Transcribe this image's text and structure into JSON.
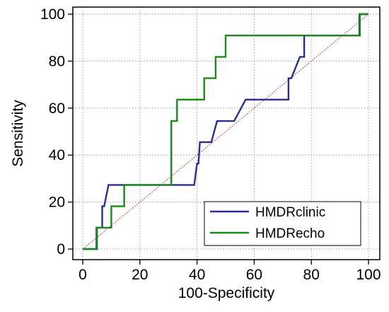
{
  "chart_data": {
    "type": "line",
    "xlabel": "100-Specificity",
    "ylabel": "Sensitivity",
    "xlim": [
      0,
      100
    ],
    "ylim": [
      0,
      100
    ],
    "x_ticks": [
      "0",
      "20",
      "40",
      "60",
      "80",
      "100"
    ],
    "y_ticks": [
      "0",
      "20",
      "40",
      "60",
      "80",
      "100"
    ],
    "grid": true,
    "legend_position": "bottom-right",
    "series": [
      {
        "name": "HMDRclinic",
        "color": "#2b2e8f",
        "points": [
          [
            0,
            0
          ],
          [
            4.8,
            0
          ],
          [
            4.8,
            9.1
          ],
          [
            6.8,
            9.1
          ],
          [
            6.8,
            18.2
          ],
          [
            7.5,
            18.2
          ],
          [
            7.5,
            18.2
          ],
          [
            9,
            27.3
          ],
          [
            39,
            27.3
          ],
          [
            40,
            36.4
          ],
          [
            40.5,
            36.4
          ],
          [
            41,
            45.5
          ],
          [
            45,
            45.5
          ],
          [
            47,
            54.5
          ],
          [
            53,
            54.5
          ],
          [
            57,
            63.6
          ],
          [
            72,
            63.6
          ],
          [
            72,
            72.7
          ],
          [
            73,
            72.7
          ],
          [
            76,
            81.8
          ],
          [
            77.5,
            81.8
          ],
          [
            77.5,
            90.9
          ],
          [
            96.8,
            90.9
          ],
          [
            96.8,
            100
          ],
          [
            100,
            100
          ]
        ]
      },
      {
        "name": "HMDRecho",
        "color": "#1a8a1a",
        "points": [
          [
            0,
            0
          ],
          [
            5,
            0
          ],
          [
            5,
            9.1
          ],
          [
            10,
            9.1
          ],
          [
            10,
            18.2
          ],
          [
            14.5,
            18.2
          ],
          [
            14.5,
            27.3
          ],
          [
            31,
            27.3
          ],
          [
            31,
            54.5
          ],
          [
            33,
            54.5
          ],
          [
            33,
            63.6
          ],
          [
            42.5,
            63.6
          ],
          [
            42.5,
            72.7
          ],
          [
            46.5,
            72.7
          ],
          [
            46.5,
            81.8
          ],
          [
            50,
            81.8
          ],
          [
            50,
            90.9
          ],
          [
            97,
            90.9
          ],
          [
            97,
            100
          ],
          [
            100,
            100
          ]
        ]
      },
      {
        "name": "",
        "color": "#c0392b",
        "style": "dotted",
        "points": [
          [
            0,
            0
          ],
          [
            100,
            100
          ]
        ]
      }
    ]
  }
}
